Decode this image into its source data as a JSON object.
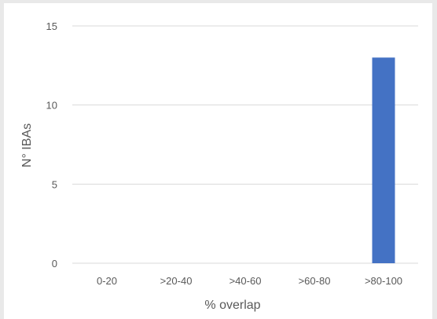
{
  "chart_data": {
    "type": "bar",
    "categories": [
      "0-20",
      ">20-40",
      ">40-60",
      ">60-80",
      ">80-100"
    ],
    "values": [
      0,
      0,
      0,
      0,
      13
    ],
    "xlabel": "% overlap",
    "ylabel": "N° IBAs",
    "ylim": [
      0,
      15
    ],
    "yticks": [
      0,
      5,
      10,
      15
    ],
    "grid": true,
    "bar_color": "#4472c4",
    "gridline_color": "#d9d9d9"
  }
}
